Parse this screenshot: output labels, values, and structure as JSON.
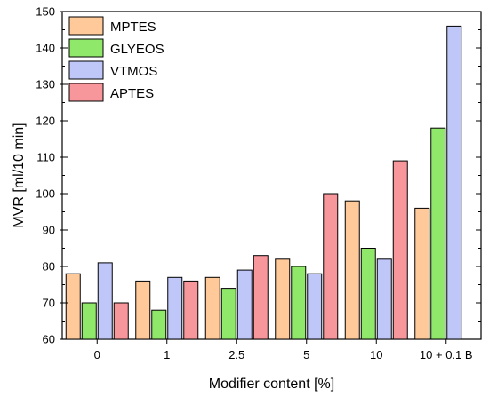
{
  "chart_data": {
    "type": "bar",
    "title": "",
    "xlabel": "Modifier content [%]",
    "ylabel": "MVR [ml/10 min]",
    "ylim": [
      60,
      150
    ],
    "yticks": [
      60,
      70,
      80,
      90,
      100,
      110,
      120,
      130,
      140,
      150
    ],
    "grid": false,
    "legend_position": "top-left",
    "categories": [
      "0",
      "1",
      "2.5",
      "5",
      "10",
      "10 + 0.1 B"
    ],
    "series": [
      {
        "name": "MPTES",
        "color": "#FFC999",
        "values": [
          78,
          76,
          77,
          82,
          98,
          96
        ]
      },
      {
        "name": "GLYEOS",
        "color": "#8FE86A",
        "values": [
          70,
          68,
          74,
          80,
          85,
          118
        ]
      },
      {
        "name": "VTMOS",
        "color": "#BFC6F8",
        "values": [
          81,
          77,
          79,
          78,
          82,
          146
        ]
      },
      {
        "name": "APTES",
        "color": "#F7969B",
        "values": [
          70,
          76,
          83,
          100,
          109,
          null
        ]
      }
    ]
  }
}
